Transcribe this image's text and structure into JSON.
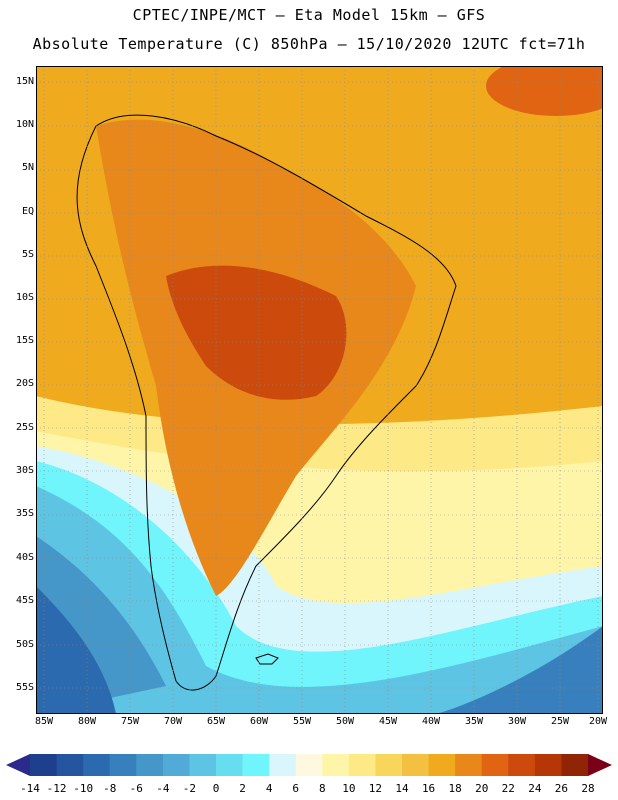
{
  "header": {
    "title_line1": "CPTEC/INPE/MCT –  Eta Model 15km – GFS",
    "title_line2": "Absolute Temperature (C) 850hPa – 15/10/2020 12UTC fct=71h"
  },
  "map": {
    "region": "South America",
    "lat_labels": [
      "15N",
      "10N",
      "5N",
      "EQ",
      "5S",
      "10S",
      "15S",
      "20S",
      "25S",
      "30S",
      "35S",
      "40S",
      "45S",
      "50S",
      "55S"
    ],
    "lon_labels": [
      "85W",
      "80W",
      "75W",
      "70W",
      "65W",
      "60W",
      "55W",
      "50W",
      "45W",
      "40W",
      "35W",
      "30W",
      "25W",
      "20W"
    ]
  },
  "colorbar": {
    "labels": [
      "-14",
      "-12",
      "-10",
      "-8",
      "-6",
      "-4",
      "-2",
      "0",
      "2",
      "4",
      "6",
      "8",
      "10",
      "12",
      "14",
      "16",
      "18",
      "20",
      "22",
      "24",
      "26",
      "28"
    ],
    "colors": [
      "#1d3f8c",
      "#24559e",
      "#2b6aae",
      "#3780bd",
      "#4596c9",
      "#52aad6",
      "#5ec4e4",
      "#66def0",
      "#6ff5fb",
      "#d8f6fb",
      "#fff8e0",
      "#fff5a8",
      "#fde986",
      "#f8d65c",
      "#f4c042",
      "#f0aa1e",
      "#e8881a",
      "#e06412",
      "#cc4a0c",
      "#b63608",
      "#902405"
    ],
    "low_arrow_color": "#2a2a8a",
    "high_arrow_color": "#7a0018"
  }
}
